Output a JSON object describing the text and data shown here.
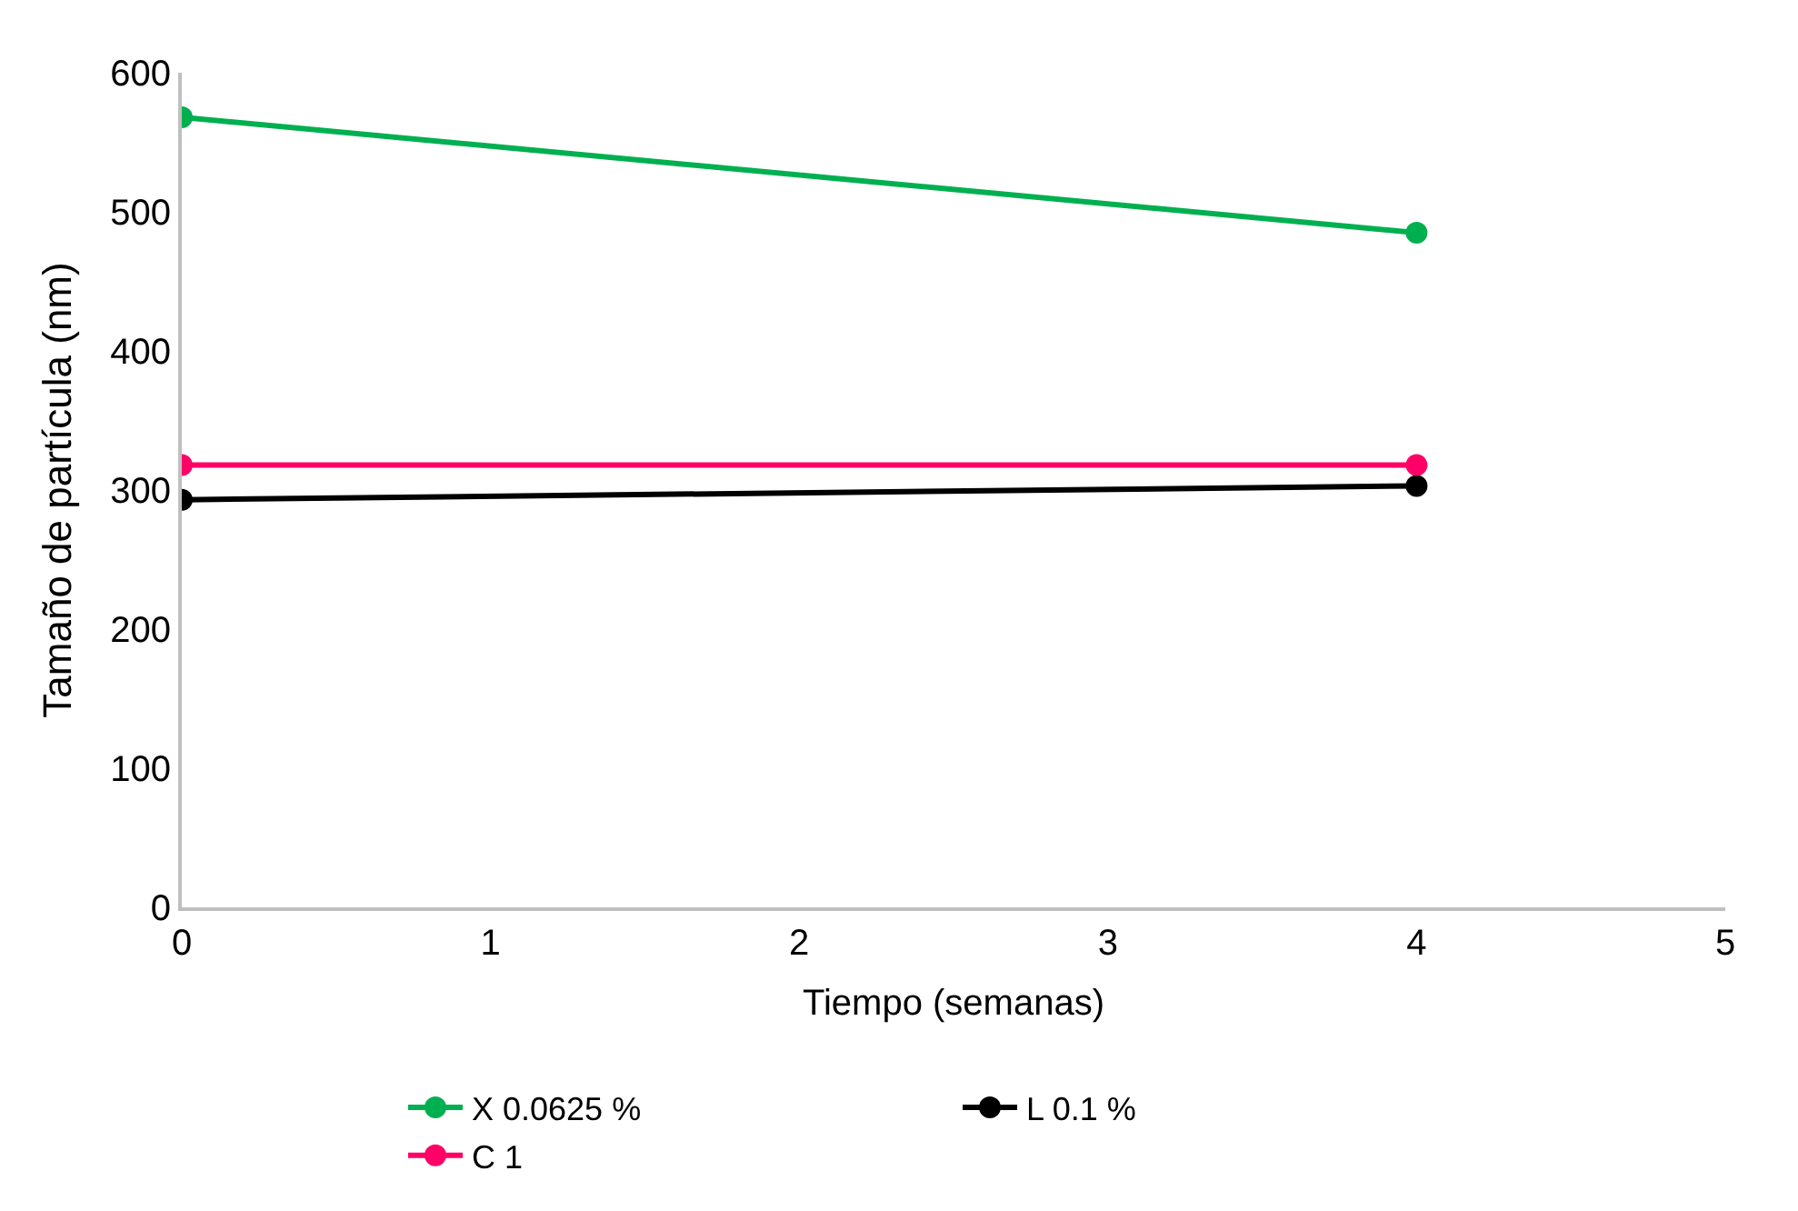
{
  "chart_data": {
    "type": "line",
    "xlabel": "Tiempo (semanas)",
    "ylabel": "Tamaño de partícula (nm)",
    "x": [
      0,
      4
    ],
    "series": [
      {
        "name": "X 0.0625 %",
        "color": "#00b050",
        "values": [
          568,
          485
        ]
      },
      {
        "name": "L 0.1 %",
        "color": "#000000",
        "values": [
          293,
          303
        ]
      },
      {
        "name": "C 1",
        "color": "#ff0066",
        "values": [
          318,
          318
        ]
      }
    ],
    "xlim": [
      0,
      5
    ],
    "xticks": [
      0,
      1,
      2,
      3,
      4,
      5
    ],
    "ylim": [
      0,
      600
    ],
    "yticks": [
      0,
      100,
      200,
      300,
      400,
      500,
      600
    ],
    "grid": false,
    "legend": "bottom",
    "marker": "circle",
    "line_style": "solid"
  }
}
